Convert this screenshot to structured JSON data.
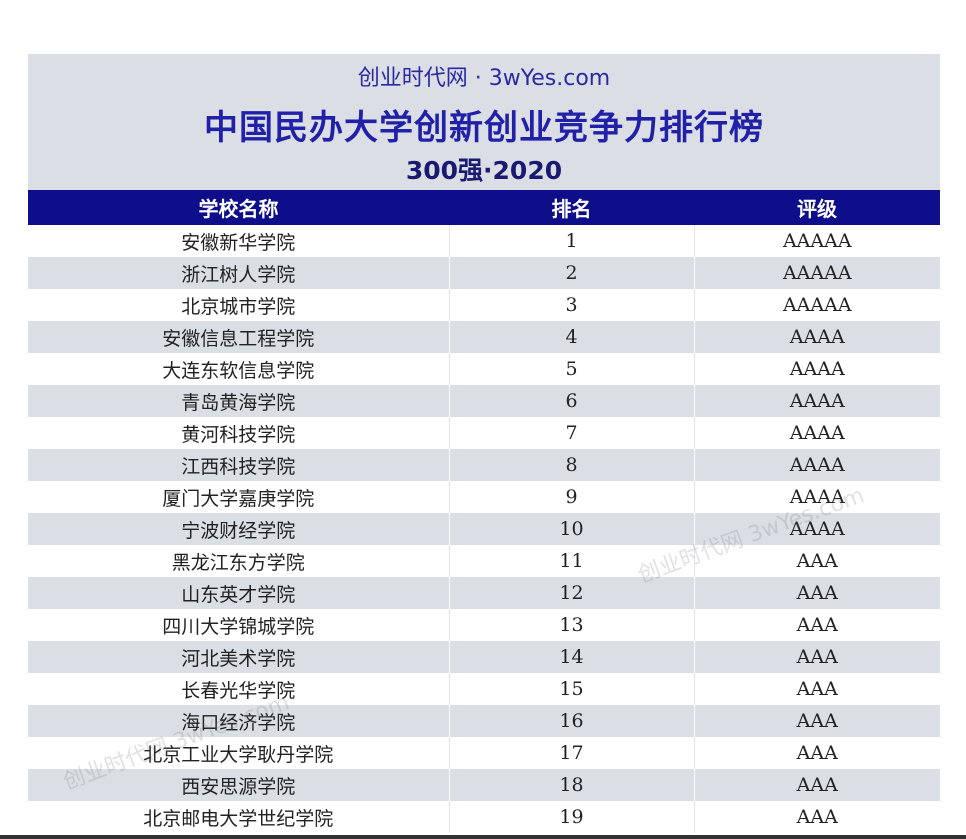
{
  "header": {
    "site": "创业时代网 · 3wYes.com",
    "title": "中国民办大学创新创业竞争力排行榜",
    "subtitle": "300强·2020"
  },
  "table": {
    "columns": [
      "学校名称",
      "排名",
      "评级"
    ],
    "rows": [
      [
        "安徽新华学院",
        "1",
        "AAAAA"
      ],
      [
        "浙江树人学院",
        "2",
        "AAAAA"
      ],
      [
        "北京城市学院",
        "3",
        "AAAAA"
      ],
      [
        "安徽信息工程学院",
        "4",
        "AAAA"
      ],
      [
        "大连东软信息学院",
        "5",
        "AAAA"
      ],
      [
        "青岛黄海学院",
        "6",
        "AAAA"
      ],
      [
        "黄河科技学院",
        "7",
        "AAAA"
      ],
      [
        "江西科技学院",
        "8",
        "AAAA"
      ],
      [
        "厦门大学嘉庚学院",
        "9",
        "AAAA"
      ],
      [
        "宁波财经学院",
        "10",
        "AAAA"
      ],
      [
        "黑龙江东方学院",
        "11",
        "AAA"
      ],
      [
        "山东英才学院",
        "12",
        "AAA"
      ],
      [
        "四川大学锦城学院",
        "13",
        "AAA"
      ],
      [
        "河北美术学院",
        "14",
        "AAA"
      ],
      [
        "长春光华学院",
        "15",
        "AAA"
      ],
      [
        "海口经济学院",
        "16",
        "AAA"
      ],
      [
        "北京工业大学耿丹学院",
        "17",
        "AAA"
      ],
      [
        "西安思源学院",
        "18",
        "AAA"
      ],
      [
        "北京邮电大学世纪学院",
        "19",
        "AAA"
      ]
    ]
  },
  "watermarks": [
    "创业时代网 3wYes.com",
    "创业时代网 3wYes.com"
  ]
}
